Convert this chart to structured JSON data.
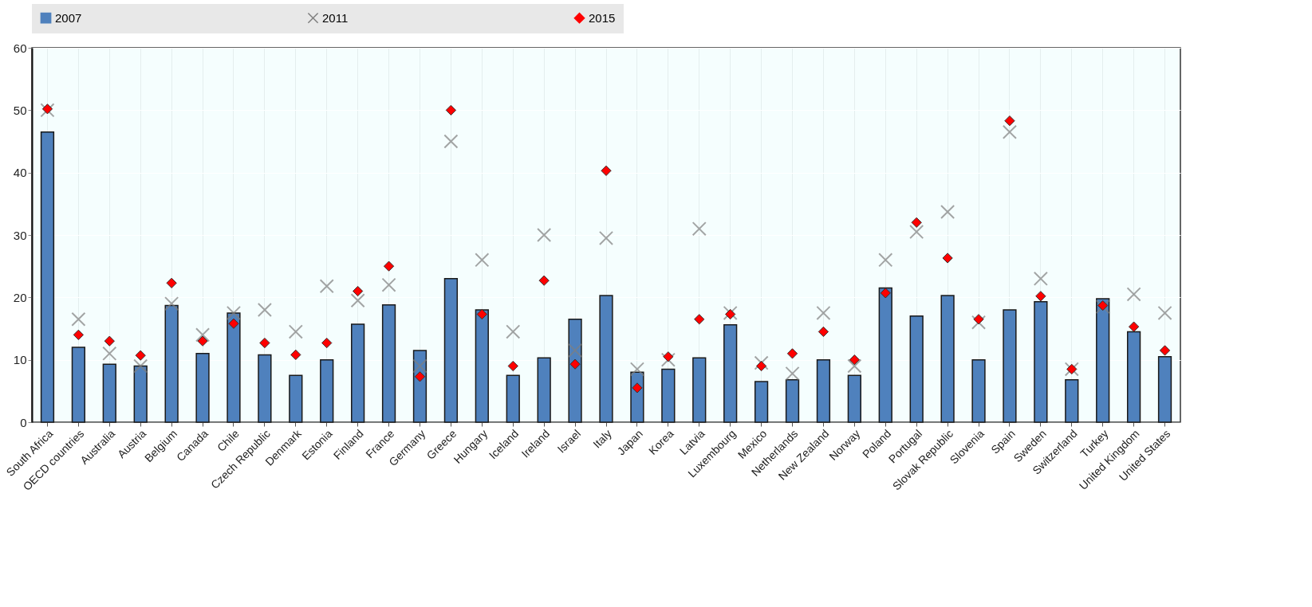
{
  "chart_data": {
    "type": "bar",
    "categories": [
      "South Africa",
      "OECD countries",
      "Australia",
      "Austria",
      "Belgium",
      "Canada",
      "Chile",
      "Czech Republic",
      "Denmark",
      "Estonia",
      "Finland",
      "France",
      "Germany",
      "Greece",
      "Hungary",
      "Iceland",
      "Ireland",
      "Israel",
      "Italy",
      "Japan",
      "Korea",
      "Latvia",
      "Luxembourg",
      "Mexico",
      "Netherlands",
      "New Zealand",
      "Norway",
      "Poland",
      "Portugal",
      "Slovak Republic",
      "Slovenia",
      "Spain",
      "Sweden",
      "Switzerland",
      "Turkey",
      "United Kingdom",
      "United States"
    ],
    "series": [
      {
        "name": "2007",
        "color": "#4f81bd",
        "values": [
          46.5,
          12,
          9.3,
          9,
          18.7,
          11,
          17.5,
          10.8,
          7.5,
          10,
          15.7,
          18.8,
          11.5,
          23,
          18,
          7.5,
          10.3,
          16.5,
          20.3,
          8,
          8.5,
          10.3,
          15.6,
          6.5,
          6.8,
          10,
          7.5,
          21.5,
          17,
          20.3,
          10,
          18,
          19.3,
          6.8,
          19.8,
          14.5,
          10.5
        ]
      },
      {
        "name": "2011",
        "type": "scatter",
        "marker": "cross",
        "color": "#7f7f7f",
        "values": [
          50,
          16.5,
          11,
          9,
          19,
          14,
          17.5,
          18,
          14.5,
          21.8,
          19.5,
          22,
          9,
          45,
          26,
          14.5,
          30,
          11.5,
          29.5,
          8.5,
          10,
          31,
          17.5,
          9.5,
          7.8,
          17.5,
          9,
          26,
          30.5,
          33.7,
          16,
          46.5,
          23,
          8.5,
          18.5,
          20.5,
          17.5
        ]
      },
      {
        "name": "2015",
        "type": "scatter",
        "marker": "diamond",
        "color": "#ff0000",
        "values": [
          50.2,
          14,
          13,
          10.7,
          22.3,
          13,
          15.8,
          12.7,
          10.8,
          12.7,
          21,
          25,
          7.3,
          50,
          17.3,
          9,
          22.7,
          9.3,
          40.3,
          5.5,
          10.5,
          16.5,
          17.3,
          9,
          11,
          14.5,
          10,
          20.7,
          32,
          26.3,
          16.5,
          48.3,
          20.2,
          8.5,
          18.7,
          15.3,
          11.5
        ]
      }
    ],
    "ylim": [
      0,
      60
    ],
    "yticks": [
      0,
      10,
      20,
      30,
      40,
      50,
      60
    ],
    "grid": true,
    "legend": "top"
  }
}
